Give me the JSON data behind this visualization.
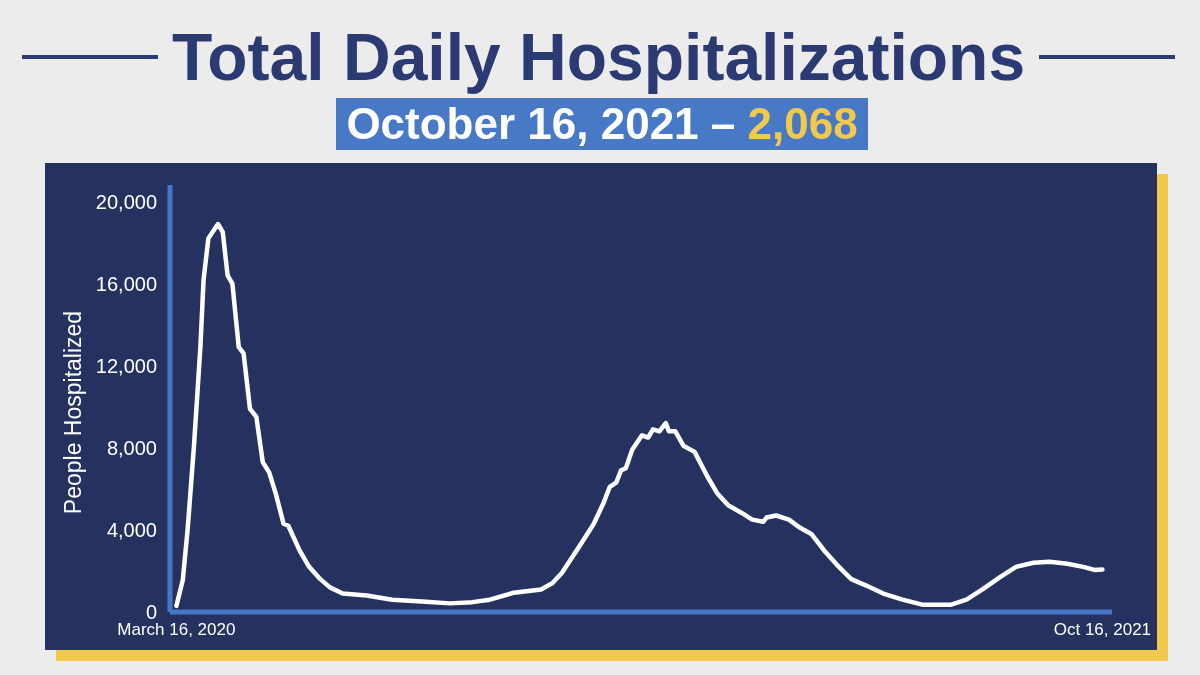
{
  "chart_data": {
    "type": "line",
    "title": "Total Daily Hospitalizations",
    "subtitle": "October 16, 2021 – 2,068",
    "ylabel": "People Hospitalized",
    "x": [
      "2020-03-16",
      "2020-03-20",
      "2020-03-23",
      "2020-03-27",
      "2020-03-31",
      "2020-04-02",
      "2020-04-05",
      "2020-04-11",
      "2020-04-14",
      "2020-04-17",
      "2020-04-20",
      "2020-04-24",
      "2020-04-27",
      "2020-05-01",
      "2020-05-05",
      "2020-05-09",
      "2020-05-13",
      "2020-05-17",
      "2020-05-22",
      "2020-05-25",
      "2020-06-01",
      "2020-06-07",
      "2020-06-14",
      "2020-06-20",
      "2020-06-28",
      "2020-07-13",
      "2020-07-29",
      "2020-08-19",
      "2020-09-03",
      "2020-09-17",
      "2020-09-28",
      "2020-10-13",
      "2020-10-30",
      "2020-11-06",
      "2020-11-12",
      "2020-11-23",
      "2020-12-02",
      "2020-12-08",
      "2020-12-12",
      "2020-12-16",
      "2020-12-19",
      "2020-12-22",
      "2020-12-26",
      "2021-01-01",
      "2021-01-05",
      "2021-01-08",
      "2021-01-12",
      "2021-01-16",
      "2021-01-18",
      "2021-01-22",
      "2021-01-27",
      "2021-02-03",
      "2021-02-11",
      "2021-02-17",
      "2021-02-24",
      "2021-03-05",
      "2021-03-11",
      "2021-03-18",
      "2021-03-20",
      "2021-03-26",
      "2021-04-03",
      "2021-04-10",
      "2021-04-17",
      "2021-04-25",
      "2021-05-03",
      "2021-05-12",
      "2021-05-21",
      "2021-06-01",
      "2021-06-13",
      "2021-06-26",
      "2021-07-13",
      "2021-07-23",
      "2021-08-02",
      "2021-08-13",
      "2021-08-23",
      "2021-09-03",
      "2021-09-13",
      "2021-09-24",
      "2021-10-04",
      "2021-10-11",
      "2021-10-16"
    ],
    "values": [
      300,
      1560,
      4000,
      8100,
      12900,
      16200,
      18200,
      18900,
      18500,
      16400,
      16000,
      12900,
      12600,
      9900,
      9500,
      7300,
      6800,
      5800,
      4300,
      4200,
      3000,
      2200,
      1600,
      1200,
      900,
      800,
      600,
      500,
      420,
      480,
      600,
      940,
      1100,
      1400,
      1900,
      3200,
      4300,
      5300,
      6100,
      6300,
      6900,
      7000,
      7900,
      8600,
      8500,
      8900,
      8800,
      9200,
      8800,
      8800,
      8100,
      7800,
      6600,
      5800,
      5200,
      4800,
      4500,
      4400,
      4600,
      4700,
      4500,
      4100,
      3800,
      3000,
      2300,
      1600,
      1300,
      900,
      600,
      350,
      350,
      600,
      1100,
      1700,
      2200,
      2400,
      2450,
      2350,
      2200,
      2050,
      2068
    ],
    "color": "#ffffff",
    "line_style": "solid",
    "xlim": [
      "2020-03-12",
      "2021-10-22"
    ],
    "xticks": [
      {
        "value": "2020-03-16",
        "label": "March 16, 2020"
      },
      {
        "value": "2021-10-16",
        "label": "Oct 16, 2021"
      }
    ],
    "ylim": [
      0,
      20800
    ],
    "yticks": [
      0,
      {
        "value": 4000,
        "label": "4,000"
      },
      {
        "value": 8000,
        "label": "8,000"
      },
      {
        "value": 12000,
        "label": "12,000"
      },
      {
        "value": 16000,
        "label": "16,000"
      },
      {
        "value": 20000,
        "label": "20,000"
      }
    ]
  }
}
